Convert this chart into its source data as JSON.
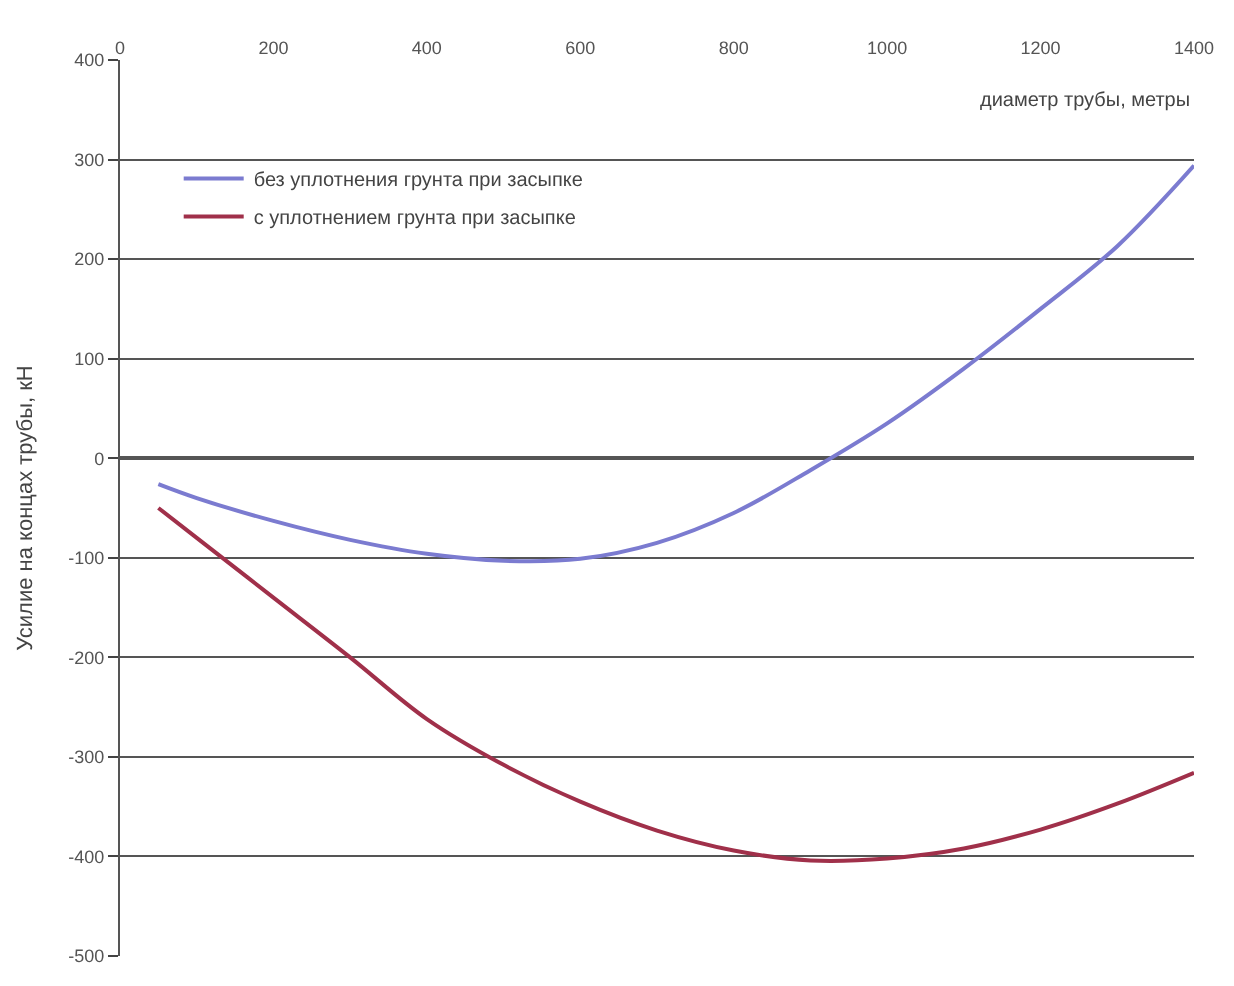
{
  "chart_data": {
    "type": "line",
    "xlabel": "диаметр трубы, метры",
    "ylabel": "Усилие на концах трубы, кН",
    "x": [
      50,
      100,
      200,
      300,
      400,
      500,
      600,
      700,
      800,
      900,
      1000,
      1100,
      1200,
      1300,
      1400
    ],
    "series": [
      {
        "name": "без уплотнения грунта при засыпке",
        "color": "#7b7bd0",
        "values": [
          -26,
          -40,
          -63,
          -82,
          -96,
          -103,
          -101,
          -85,
          -55,
          -12,
          35,
          90,
          150,
          213,
          294
        ]
      },
      {
        "name": "с уплотнением грунта при засыпке",
        "color": "#a0304a",
        "values": [
          -50,
          -80,
          -140,
          -200,
          -262,
          -308,
          -345,
          -374,
          -394,
          -404,
          -402,
          -392,
          -373,
          -347,
          -316
        ]
      }
    ],
    "xlim": [
      0,
      1400
    ],
    "xticks": [
      0,
      200,
      400,
      600,
      800,
      1000,
      1200,
      1400
    ],
    "ylim": [
      -500,
      400
    ],
    "yticks": [
      -500,
      -400,
      -300,
      -200,
      -100,
      0,
      100,
      200,
      300,
      400
    ],
    "grid": "y",
    "legend": "top left",
    "marker": "none",
    "line_style": "solid"
  }
}
